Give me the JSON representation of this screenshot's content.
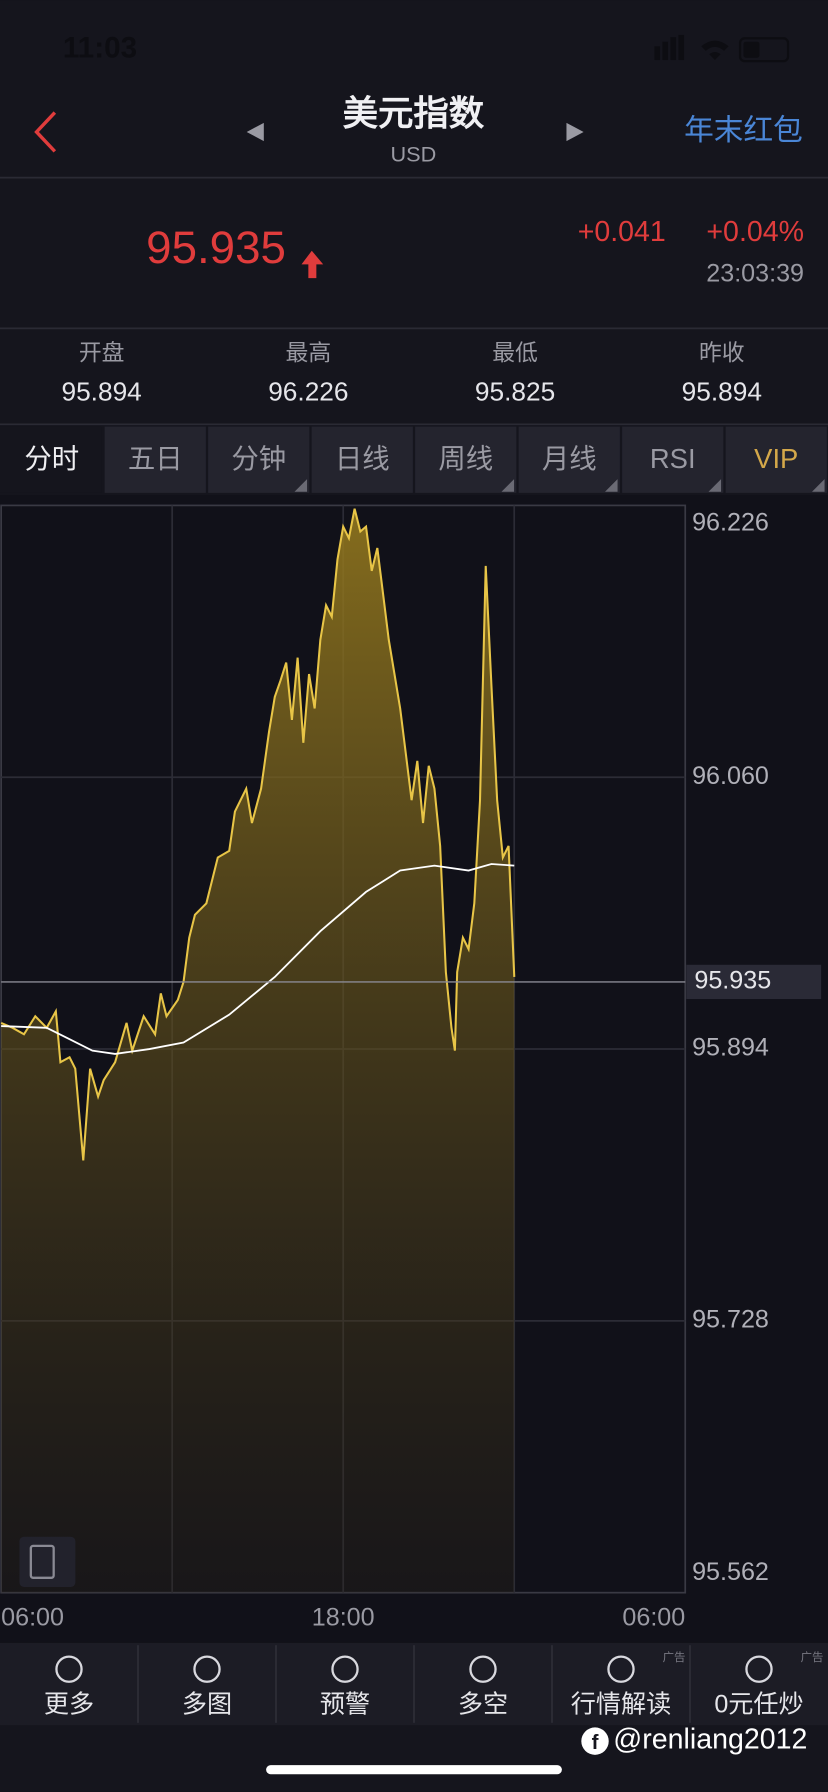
{
  "status": {
    "time": "11:03"
  },
  "header": {
    "title": "美元指数",
    "subtitle": "USD",
    "action": "年末红包"
  },
  "quote": {
    "price": "95.935",
    "change": "+0.041",
    "change_pct": "+0.04%",
    "time": "23:03:39"
  },
  "stats": [
    {
      "label": "开盘",
      "value": "95.894"
    },
    {
      "label": "最高",
      "value": "96.226"
    },
    {
      "label": "最低",
      "value": "95.825"
    },
    {
      "label": "昨收",
      "value": "95.894"
    }
  ],
  "tabs": [
    "分时",
    "五日",
    "分钟",
    "日线",
    "周线",
    "月线",
    "RSI",
    "VIP"
  ],
  "chart_data": {
    "type": "line",
    "xlim": [
      0,
      24
    ],
    "xticks": [
      {
        "value": 0,
        "label": "06:00"
      },
      {
        "value": 12,
        "label": "18:00"
      },
      {
        "value": 24,
        "label": "06:00"
      }
    ],
    "ylim": [
      95.562,
      96.226
    ],
    "yticks": [
      95.562,
      95.728,
      95.894,
      96.06,
      96.226
    ],
    "yticks_labels": [
      "95.562",
      "95.728",
      "95.894",
      "96.060",
      "96.226"
    ],
    "current": {
      "value": 95.935,
      "label": "95.935"
    },
    "grid": true,
    "series": [
      {
        "color": "#e8c547",
        "x": [
          0,
          0.4,
          0.8,
          1.2,
          1.6,
          1.92,
          2.08,
          2.4,
          2.6,
          2.88,
          3.12,
          3.4,
          3.6,
          4,
          4.4,
          4.6,
          5,
          5.4,
          5.6,
          5.8,
          6.2,
          6.4,
          6.6,
          6.8,
          7.2,
          7.4,
          7.6,
          8,
          8.2,
          8.6,
          8.8,
          9.12,
          9.4,
          9.6,
          9.8,
          10,
          10.2,
          10.4,
          10.6,
          10.8,
          11,
          11.2,
          11.4,
          11.6,
          11.8,
          12,
          12.2,
          12.4,
          12.6,
          12.8,
          13,
          13.2,
          13.4,
          13.6,
          13.8,
          14,
          14.2,
          14.4,
          14.6,
          14.8,
          15,
          15.2,
          15.4,
          15.6,
          15.8,
          15.92,
          16,
          16.2,
          16.4,
          16.6,
          16.8,
          17,
          17.2,
          17.4,
          17.6,
          17.8,
          18
        ],
        "values": [
          95.91,
          95.907,
          95.903,
          95.914,
          95.907,
          95.917,
          95.886,
          95.889,
          95.882,
          95.826,
          95.882,
          95.865,
          95.875,
          95.886,
          95.91,
          95.893,
          95.914,
          95.903,
          95.928,
          95.914,
          95.924,
          95.935,
          95.962,
          95.976,
          95.983,
          95.997,
          96.011,
          96.015,
          96.039,
          96.053,
          96.032,
          96.053,
          96.088,
          96.109,
          96.119,
          96.13,
          96.095,
          96.133,
          96.081,
          96.123,
          96.102,
          96.144,
          96.165,
          96.158,
          96.193,
          96.213,
          96.206,
          96.224,
          96.21,
          96.213,
          96.186,
          96.2,
          96.172,
          96.144,
          96.123,
          96.102,
          96.074,
          96.046,
          96.07,
          96.032,
          96.067,
          96.053,
          96.018,
          95.941,
          95.907,
          95.893,
          95.941,
          95.962,
          95.955,
          95.983,
          96.046,
          96.189,
          96.116,
          96.046,
          96.011,
          96.018,
          95.938
        ]
      },
      {
        "color": "#ffffff",
        "x": [
          0,
          1.6,
          2.4,
          3.2,
          4,
          5.2,
          6.4,
          8,
          9.6,
          11.2,
          12.8,
          14,
          15.2,
          16.4,
          17.2,
          18
        ],
        "values": [
          95.908,
          95.907,
          95.9,
          95.893,
          95.891,
          95.894,
          95.898,
          95.915,
          95.938,
          95.966,
          95.99,
          96.003,
          96.006,
          96.003,
          96.007,
          96.006
        ]
      }
    ]
  },
  "nav": [
    {
      "label": "更多"
    },
    {
      "label": "多图"
    },
    {
      "label": "预警"
    },
    {
      "label": "多空"
    },
    {
      "label": "行情解读",
      "ad": "广告"
    },
    {
      "label": "0元任炒",
      "ad": "广告"
    }
  ],
  "watermark": "@renliang2012"
}
